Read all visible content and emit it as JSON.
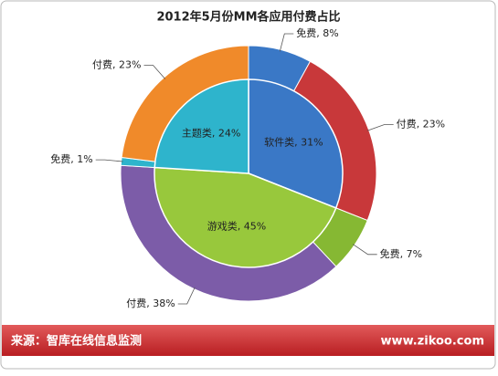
{
  "chart_data": {
    "type": "sunburst",
    "title": "2012年5月份MM各应用付费占比",
    "groups": [
      {
        "label": "软件类, 31%",
        "value": 31,
        "color": "#3a78c6",
        "children": [
          {
            "label": "免费, 8%",
            "value": 8,
            "color": "#3a78c6"
          },
          {
            "label": "付费, 23%",
            "value": 23,
            "color": "#c8383a"
          }
        ]
      },
      {
        "label": "游戏类, 45%",
        "value": 45,
        "color": "#98c83c",
        "children": [
          {
            "label": "免费, 7%",
            "value": 7,
            "color": "#86b833"
          },
          {
            "label": "付费, 38%",
            "value": 38,
            "color": "#7c5ca8"
          }
        ]
      },
      {
        "label": "主题类, 24%",
        "value": 24,
        "color": "#2eb4cc",
        "children": [
          {
            "label": "免费, 1%",
            "value": 1,
            "color": "#2eb4cc"
          },
          {
            "label": "付费, 23%",
            "value": 23,
            "color": "#f08a2a"
          }
        ]
      }
    ]
  },
  "footer": {
    "source": "来源：智库在线信息监测",
    "site": "www.zikoo.com"
  }
}
